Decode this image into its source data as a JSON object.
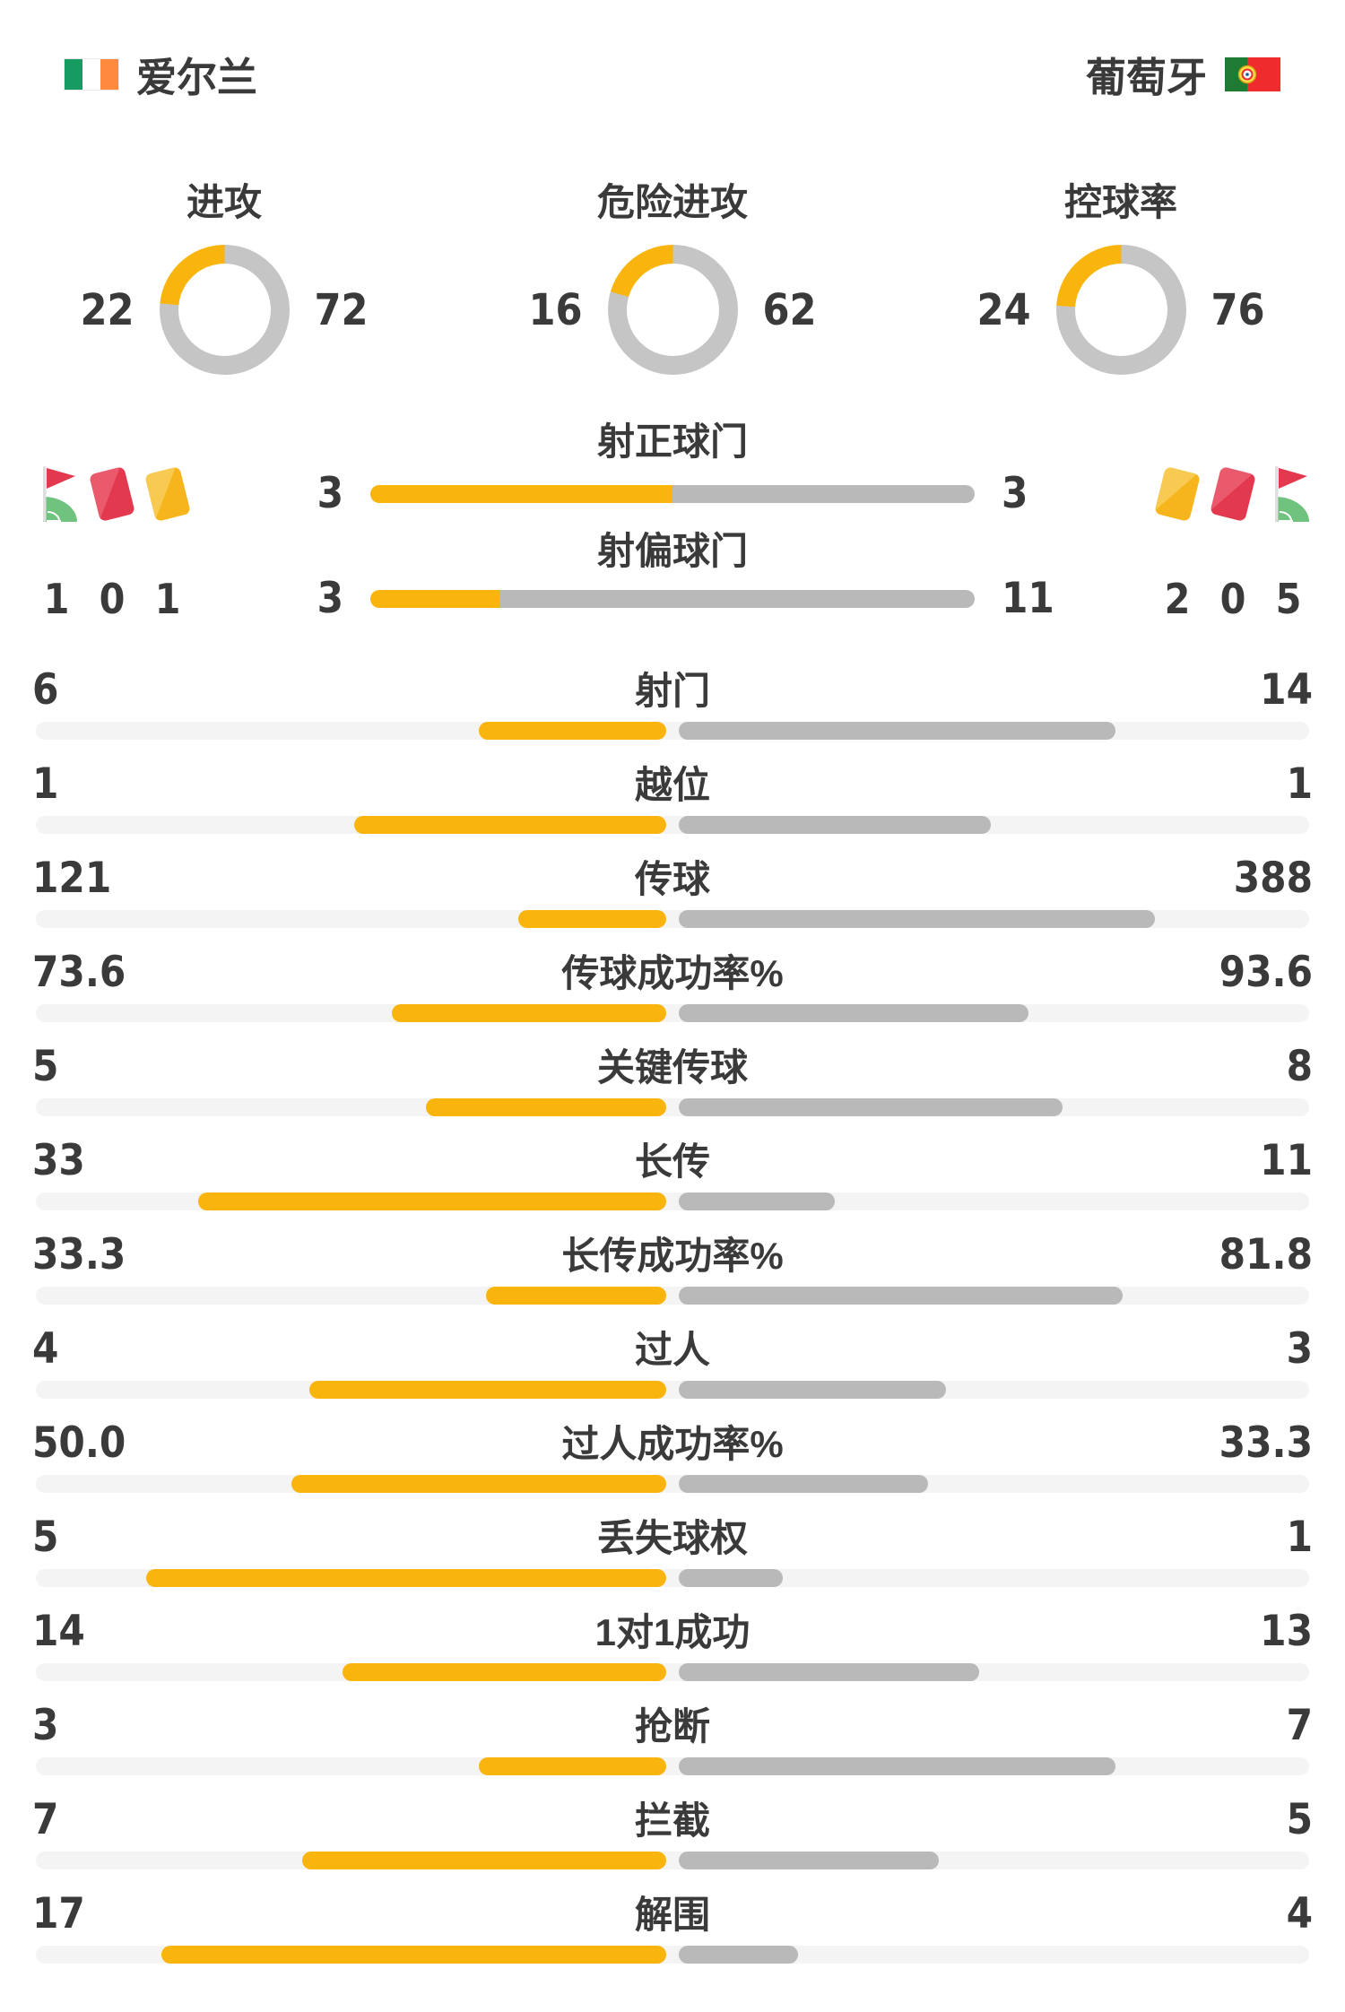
{
  "header": {
    "home_team": "爱尔兰",
    "away_team": "葡萄牙"
  },
  "colors": {
    "home_accent": "#F9B50E",
    "away_gray": "#B9B9B9",
    "donut_gray": "#C5C5C6",
    "track_gray": "#F4F4F5",
    "text": "#3A3A3A",
    "card_red": "#E2394E",
    "card_red_light": "#EA5A6C",
    "card_yellow": "#F6B51D",
    "card_yellow_light": "#F9CA52",
    "flag_green": "#169C62",
    "flag_orange": "#FF8A3D",
    "pt_green": "#1F7A33",
    "pt_red": "#EF2B2D",
    "corner_green": "#6FC37E"
  },
  "icons": {
    "home_order": [
      "corner-flag",
      "red-card",
      "yellow-card"
    ],
    "away_order": [
      "yellow-card",
      "red-card",
      "corner-flag"
    ]
  },
  "chart_data": {
    "type": "bar",
    "teams": [
      "爱尔兰",
      "葡萄牙"
    ],
    "legend_position": "none",
    "donuts": [
      {
        "label": "进攻",
        "values": [
          22,
          72
        ]
      },
      {
        "label": "危险进攻",
        "values": [
          16,
          62
        ]
      },
      {
        "label": "控球率",
        "values": [
          24,
          76
        ]
      }
    ],
    "duel_bars": [
      {
        "label": "射正球门",
        "values": [
          3,
          3
        ]
      },
      {
        "label": "射偏球门",
        "values": [
          3,
          11
        ]
      }
    ],
    "discipline": {
      "home": {
        "corners": 1,
        "red_cards": 0,
        "yellow_cards": 1
      },
      "away": {
        "corners": 5,
        "red_cards": 0,
        "yellow_cards": 2
      }
    },
    "stat_bars": [
      {
        "label": "射门",
        "values": [
          "6",
          "14"
        ]
      },
      {
        "label": "越位",
        "values": [
          "1",
          "1"
        ]
      },
      {
        "label": "传球",
        "values": [
          "121",
          "388"
        ]
      },
      {
        "label": "传球成功率%",
        "values": [
          "73.6",
          "93.6"
        ]
      },
      {
        "label": "关键传球",
        "values": [
          "5",
          "8"
        ]
      },
      {
        "label": "长传",
        "values": [
          "33",
          "11"
        ]
      },
      {
        "label": "长传成功率%",
        "values": [
          "33.3",
          "81.8"
        ]
      },
      {
        "label": "过人",
        "values": [
          "4",
          "3"
        ]
      },
      {
        "label": "过人成功率%",
        "values": [
          "50.0",
          "33.3"
        ]
      },
      {
        "label": "丢失球权",
        "values": [
          "5",
          "1"
        ]
      },
      {
        "label": "1对1成功",
        "values": [
          "14",
          "13"
        ]
      },
      {
        "label": "抢断",
        "values": [
          "3",
          "7"
        ]
      },
      {
        "label": "拦截",
        "values": [
          "7",
          "5"
        ]
      },
      {
        "label": "解围",
        "values": [
          "17",
          "4"
        ]
      }
    ]
  }
}
